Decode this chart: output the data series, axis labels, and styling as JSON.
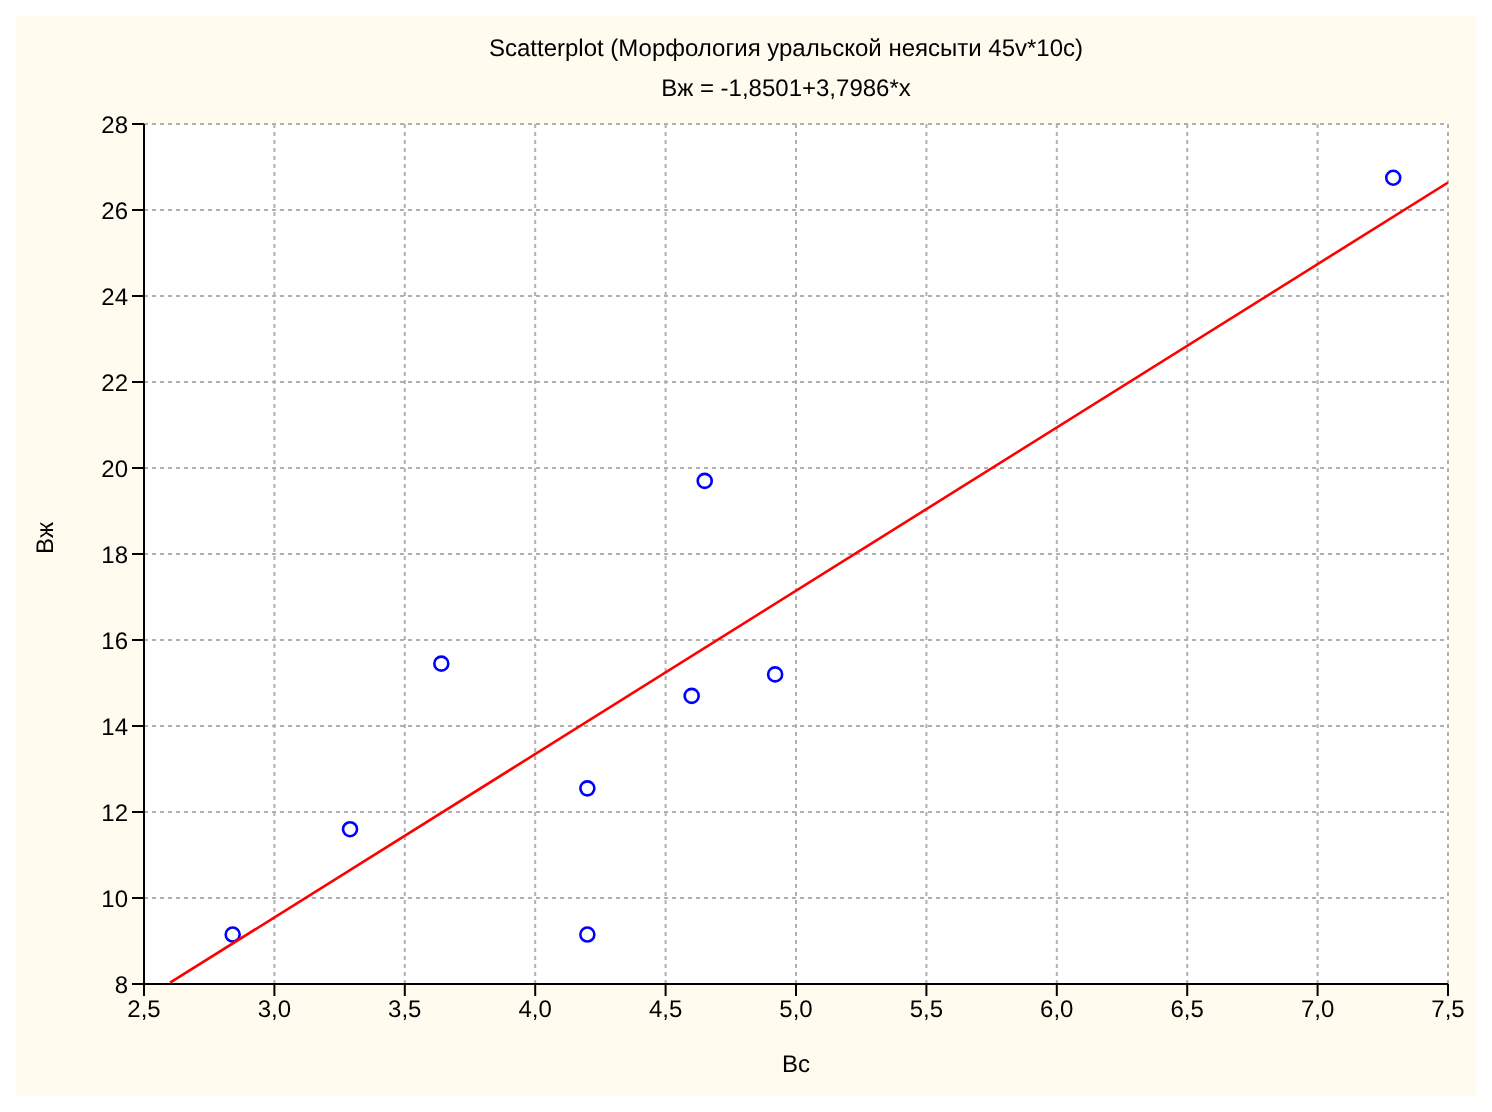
{
  "chart_data": {
    "type": "scatter",
    "title": "Scatterplot (Морфология уральской неясыти 45v*10c)",
    "subtitle": "Вж = -1,8501+3,7986*x",
    "xlabel": "Вс",
    "ylabel": "Вж",
    "x": [
      2.84,
      3.29,
      3.64,
      4.2,
      4.2,
      4.6,
      4.65,
      4.92,
      7.29
    ],
    "series": [
      {
        "color": "#0000ff",
        "values": [
          9.15,
          11.6,
          15.45,
          12.55,
          9.15,
          14.7,
          19.7,
          15.2,
          26.75
        ]
      },
      {
        "type": "line",
        "marker": "none",
        "color": "#ff0000",
        "x": [
          2.6,
          7.5
        ],
        "values": [
          8.03,
          26.64
        ]
      }
    ],
    "xlim": [
      2.5,
      7.5
    ],
    "xticks": [
      {
        "value": 2.5,
        "label": "2,5"
      },
      {
        "value": 3,
        "label": "3,0"
      },
      {
        "value": 3.5,
        "label": "3,5"
      },
      {
        "value": 4,
        "label": "4,0"
      },
      {
        "value": 4.5,
        "label": "4,5"
      },
      {
        "value": 5,
        "label": "5,0"
      },
      {
        "value": 5.5,
        "label": "5,5"
      },
      {
        "value": 6,
        "label": "6,0"
      },
      {
        "value": 6.5,
        "label": "6,5"
      },
      {
        "value": 7,
        "label": "7,0"
      },
      {
        "value": 7.5,
        "label": "7,5"
      }
    ],
    "ylim": [
      8,
      28
    ],
    "yticks": [
      8,
      10,
      12,
      14,
      16,
      18,
      20,
      22,
      24,
      26,
      28
    ],
    "grid": true,
    "marker": "circle"
  }
}
